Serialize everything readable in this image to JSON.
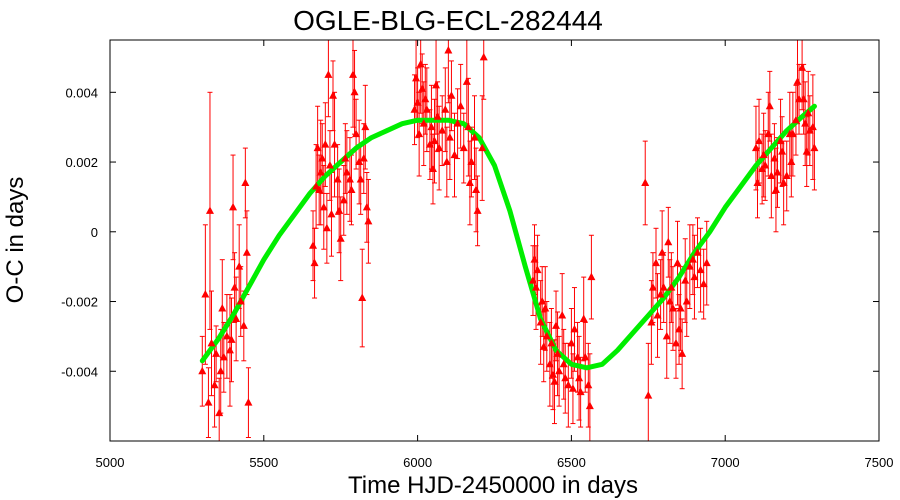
{
  "chart_data": {
    "type": "scatter",
    "title": "OGLE-BLG-ECL-282444",
    "xlabel": "Time HJD-2450000 in days",
    "ylabel": "O-C in days",
    "xlim": [
      5000,
      7500
    ],
    "ylim": [
      -0.006,
      0.0055
    ],
    "xticks": [
      5000,
      5500,
      6000,
      6500,
      7000,
      7500
    ],
    "xtick_labels": [
      "5000",
      "5500",
      "6000",
      "6500",
      "7000",
      "7500"
    ],
    "yticks": [
      -0.004,
      -0.002,
      0,
      0.002,
      0.004
    ],
    "ytick_labels": [
      "-0.004",
      "-0.002",
      "0",
      "0.002",
      "0.004"
    ],
    "grid": false,
    "colors": {
      "points": "#ff0000",
      "fit": "#00ee00"
    },
    "series": [
      {
        "kind": "points",
        "marker": "triangle",
        "points": [
          [
            5300,
            -0.004,
            0.001
          ],
          [
            5310,
            -0.0018,
            0.002
          ],
          [
            5320,
            -0.0049,
            0.001
          ],
          [
            5325,
            0.0006,
            0.0034
          ],
          [
            5330,
            -0.0032,
            0.0015
          ],
          [
            5340,
            -0.0044,
            0.0012
          ],
          [
            5345,
            -0.0035,
            0.0008
          ],
          [
            5355,
            -0.0052,
            0.001
          ],
          [
            5360,
            -0.004,
            0.0012
          ],
          [
            5365,
            -0.0022,
            0.0014
          ],
          [
            5370,
            -0.0036,
            0.001
          ],
          [
            5380,
            -0.003,
            0.0012
          ],
          [
            5390,
            -0.0034,
            0.0016
          ],
          [
            5395,
            -0.0031,
            0.0012
          ],
          [
            5400,
            0.0007,
            0.0015
          ],
          [
            5405,
            -0.0016,
            0.001
          ],
          [
            5410,
            -0.0025,
            0.0012
          ],
          [
            5420,
            -0.001,
            0.0012
          ],
          [
            5425,
            -0.002,
            0.001
          ],
          [
            5435,
            -0.0027,
            0.001
          ],
          [
            5440,
            0.0014,
            0.001
          ],
          [
            5445,
            -0.0006,
            0.0012
          ],
          [
            5450,
            -0.0049,
            0.001
          ],
          [
            5660,
            -0.0004,
            0.001
          ],
          [
            5665,
            -0.0009,
            0.001
          ],
          [
            5670,
            0.0013,
            0.0012
          ],
          [
            5675,
            0.0024,
            0.0012
          ],
          [
            5680,
            0.0012,
            0.001
          ],
          [
            5685,
            0.0017,
            0.0015
          ],
          [
            5690,
            0.0021,
            0.001
          ],
          [
            5695,
            0.0007,
            0.0012
          ],
          [
            5700,
            0.0025,
            0.0012
          ],
          [
            5705,
            0.0001,
            0.001
          ],
          [
            5710,
            0.0045,
            0.0012
          ],
          [
            5715,
            0.0019,
            0.001
          ],
          [
            5720,
            0.0005,
            0.0012
          ],
          [
            5725,
            0.0039,
            0.001
          ],
          [
            5730,
            0.0025,
            0.0015
          ],
          [
            5740,
            0.0015,
            0.001
          ],
          [
            5745,
            0.0006,
            0.0012
          ],
          [
            5750,
            -0.0002,
            0.0012
          ],
          [
            5760,
            0.0009,
            0.001
          ],
          [
            5765,
            0.0021,
            0.001
          ],
          [
            5770,
            0.0017,
            0.0012
          ],
          [
            5780,
            0.0015,
            0.0012
          ],
          [
            5785,
            0.0012,
            0.001
          ],
          [
            5790,
            0.0045,
            0.0015
          ],
          [
            5795,
            0.004,
            0.0012
          ],
          [
            5800,
            0.0028,
            0.001
          ],
          [
            5810,
            0.002,
            0.0012
          ],
          [
            5815,
            0.0015,
            0.001
          ],
          [
            5820,
            -0.0019,
            0.0014
          ],
          [
            5825,
            0.0021,
            0.001
          ],
          [
            5830,
            0.003,
            0.0012
          ],
          [
            5835,
            0.0007,
            0.001
          ],
          [
            5840,
            0.0003,
            0.0012
          ],
          [
            5990,
            0.0035,
            0.001
          ],
          [
            5995,
            0.0044,
            0.0012
          ],
          [
            6000,
            0.0037,
            0.001
          ],
          [
            6005,
            0.0028,
            0.0012
          ],
          [
            6010,
            0.0048,
            0.0014
          ],
          [
            6015,
            0.0041,
            0.001
          ],
          [
            6020,
            0.0031,
            0.0012
          ],
          [
            6025,
            0.0038,
            0.001
          ],
          [
            6030,
            0.0035,
            0.0012
          ],
          [
            6040,
            0.0025,
            0.001
          ],
          [
            6045,
            0.003,
            0.0012
          ],
          [
            6050,
            0.0018,
            0.001
          ],
          [
            6055,
            0.0026,
            0.0012
          ],
          [
            6060,
            0.0042,
            0.0014
          ],
          [
            6065,
            0.0033,
            0.001
          ],
          [
            6070,
            0.0024,
            0.0012
          ],
          [
            6080,
            0.0029,
            0.001
          ],
          [
            6090,
            0.0035,
            0.0012
          ],
          [
            6095,
            0.002,
            0.001
          ],
          [
            6100,
            0.0052,
            0.0015
          ],
          [
            6105,
            0.0027,
            0.0012
          ],
          [
            6110,
            0.0039,
            0.001
          ],
          [
            6120,
            0.0022,
            0.0012
          ],
          [
            6130,
            0.0031,
            0.001
          ],
          [
            6140,
            0.0036,
            0.0012
          ],
          [
            6150,
            0.0024,
            0.001
          ],
          [
            6160,
            0.0043,
            0.0012
          ],
          [
            6165,
            0.003,
            0.0014
          ],
          [
            6170,
            0.0014,
            0.0012
          ],
          [
            6175,
            0.002,
            0.001
          ],
          [
            6185,
            0.0027,
            0.0012
          ],
          [
            6190,
            0.0012,
            0.0012
          ],
          [
            6195,
            0.0006,
            0.001
          ],
          [
            6210,
            0.0024,
            0.0015
          ],
          [
            6215,
            0.005,
            0.0012
          ],
          [
            6375,
            -0.0014,
            0.001
          ],
          [
            6380,
            -0.0008,
            0.001
          ],
          [
            6385,
            -0.0016,
            0.0012
          ],
          [
            6390,
            -0.0011,
            0.001
          ],
          [
            6400,
            -0.0026,
            0.0012
          ],
          [
            6405,
            -0.002,
            0.001
          ],
          [
            6410,
            -0.0033,
            0.001
          ],
          [
            6415,
            -0.0022,
            0.0012
          ],
          [
            6420,
            -0.003,
            0.001
          ],
          [
            6430,
            -0.0038,
            0.0012
          ],
          [
            6435,
            -0.0032,
            0.001
          ],
          [
            6440,
            -0.0041,
            0.001
          ],
          [
            6445,
            -0.0043,
            0.0012
          ],
          [
            6450,
            -0.0027,
            0.001
          ],
          [
            6455,
            -0.0035,
            0.0012
          ],
          [
            6460,
            -0.004,
            0.001
          ],
          [
            6470,
            -0.0024,
            0.0012
          ],
          [
            6475,
            -0.0038,
            0.001
          ],
          [
            6480,
            -0.0042,
            0.001
          ],
          [
            6490,
            -0.0044,
            0.0012
          ],
          [
            6500,
            -0.0032,
            0.001
          ],
          [
            6505,
            -0.0045,
            0.001
          ],
          [
            6510,
            -0.0028,
            0.0012
          ],
          [
            6520,
            -0.0036,
            0.001
          ],
          [
            6525,
            -0.0042,
            0.0012
          ],
          [
            6530,
            -0.0046,
            0.001
          ],
          [
            6540,
            -0.0025,
            0.0012
          ],
          [
            6545,
            -0.0036,
            0.001
          ],
          [
            6555,
            -0.0044,
            0.0012
          ],
          [
            6560,
            -0.005,
            0.0015
          ],
          [
            6565,
            -0.0013,
            0.0012
          ],
          [
            6740,
            0.0014,
            0.0012
          ],
          [
            6750,
            -0.0047,
            0.0015
          ],
          [
            6760,
            -0.0026,
            0.0012
          ],
          [
            6765,
            -0.0016,
            0.001
          ],
          [
            6775,
            -0.0009,
            0.001
          ],
          [
            6780,
            -0.0024,
            0.0012
          ],
          [
            6790,
            -0.0018,
            0.001
          ],
          [
            6795,
            -0.0006,
            0.0012
          ],
          [
            6800,
            -0.0016,
            0.001
          ],
          [
            6810,
            -0.003,
            0.0012
          ],
          [
            6815,
            -0.0003,
            0.001
          ],
          [
            6820,
            -0.002,
            0.0012
          ],
          [
            6825,
            -0.0016,
            0.001
          ],
          [
            6830,
            -0.0022,
            0.0012
          ],
          [
            6840,
            -0.0032,
            0.001
          ],
          [
            6845,
            -0.0009,
            0.0012
          ],
          [
            6850,
            -0.0028,
            0.001
          ],
          [
            6855,
            -0.0022,
            0.0012
          ],
          [
            6860,
            -0.0035,
            0.001
          ],
          [
            6870,
            -0.0014,
            0.0012
          ],
          [
            6875,
            -0.002,
            0.001
          ],
          [
            6885,
            -0.001,
            0.0012
          ],
          [
            6895,
            -0.0008,
            0.001
          ],
          [
            6900,
            -0.0013,
            0.0012
          ],
          [
            6910,
            -0.0006,
            0.001
          ],
          [
            6920,
            -0.0011,
            0.0012
          ],
          [
            6930,
            -0.0015,
            0.001
          ],
          [
            6940,
            -0.0009,
            0.0012
          ],
          [
            7100,
            0.0024,
            0.0012
          ],
          [
            7105,
            0.0014,
            0.001
          ],
          [
            7110,
            0.0026,
            0.0012
          ],
          [
            7120,
            0.0018,
            0.001
          ],
          [
            7125,
            0.0022,
            0.0012
          ],
          [
            7130,
            0.0019,
            0.001
          ],
          [
            7140,
            0.0028,
            0.0012
          ],
          [
            7145,
            0.0036,
            0.001
          ],
          [
            7150,
            0.0016,
            0.0012
          ],
          [
            7160,
            0.0021,
            0.001
          ],
          [
            7165,
            0.0012,
            0.0012
          ],
          [
            7170,
            0.0017,
            0.001
          ],
          [
            7180,
            0.0026,
            0.0012
          ],
          [
            7185,
            0.0023,
            0.001
          ],
          [
            7190,
            0.0014,
            0.0012
          ],
          [
            7200,
            0.0016,
            0.001
          ],
          [
            7210,
            0.0028,
            0.0012
          ],
          [
            7215,
            0.002,
            0.001
          ],
          [
            7220,
            0.0028,
            0.0012
          ],
          [
            7230,
            0.0032,
            0.001
          ],
          [
            7235,
            0.0043,
            0.0012
          ],
          [
            7240,
            0.0038,
            0.001
          ],
          [
            7250,
            0.0047,
            0.0012
          ],
          [
            7255,
            0.0038,
            0.001
          ],
          [
            7260,
            0.0031,
            0.0012
          ],
          [
            7265,
            0.0023,
            0.001
          ],
          [
            7270,
            0.0034,
            0.0012
          ],
          [
            7275,
            0.0029,
            0.001
          ],
          [
            7285,
            0.003,
            0.0015
          ],
          [
            7290,
            0.0024,
            0.0012
          ]
        ]
      },
      {
        "kind": "fit",
        "points": [
          [
            5300,
            -0.0037
          ],
          [
            5350,
            -0.0031
          ],
          [
            5400,
            -0.0024
          ],
          [
            5450,
            -0.0016
          ],
          [
            5500,
            -0.0008
          ],
          [
            5550,
            -0.0001
          ],
          [
            5600,
            0.0005
          ],
          [
            5650,
            0.0011
          ],
          [
            5700,
            0.0016
          ],
          [
            5750,
            0.002
          ],
          [
            5800,
            0.0024
          ],
          [
            5850,
            0.0027
          ],
          [
            5900,
            0.0029
          ],
          [
            5950,
            0.0031
          ],
          [
            6000,
            0.0032
          ],
          [
            6050,
            0.0032
          ],
          [
            6100,
            0.0032
          ],
          [
            6150,
            0.0031
          ],
          [
            6200,
            0.0027
          ],
          [
            6250,
            0.0019
          ],
          [
            6300,
            0.0006
          ],
          [
            6350,
            -0.001
          ],
          [
            6400,
            -0.0025
          ],
          [
            6450,
            -0.0034
          ],
          [
            6500,
            -0.0038
          ],
          [
            6550,
            -0.0039
          ],
          [
            6600,
            -0.0038
          ],
          [
            6650,
            -0.0034
          ],
          [
            6700,
            -0.0029
          ],
          [
            6750,
            -0.0024
          ],
          [
            6800,
            -0.0019
          ],
          [
            6850,
            -0.0013
          ],
          [
            6900,
            -0.0006
          ],
          [
            6950,
            0.0
          ],
          [
            7000,
            0.0007
          ],
          [
            7050,
            0.0013
          ],
          [
            7100,
            0.0019
          ],
          [
            7150,
            0.0024
          ],
          [
            7200,
            0.0029
          ],
          [
            7250,
            0.0033
          ],
          [
            7290,
            0.0036
          ]
        ]
      }
    ]
  }
}
